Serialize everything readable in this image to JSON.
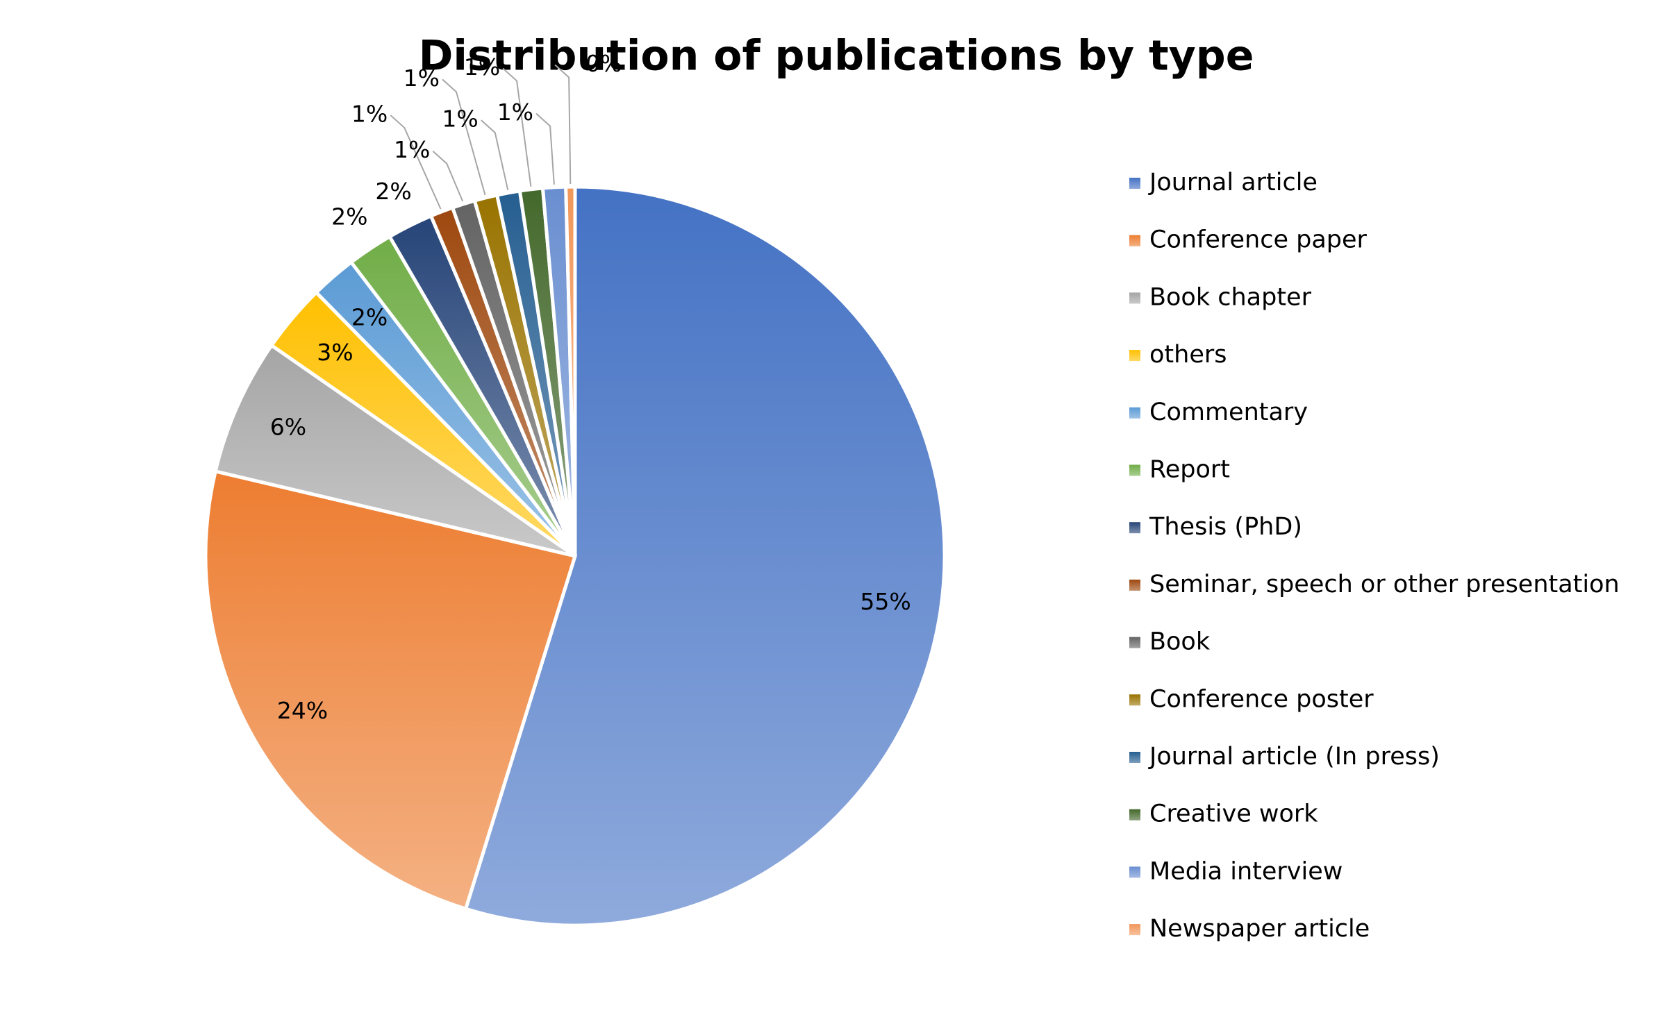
{
  "chart_data": {
    "type": "pie",
    "title": "Distribution of publications by type",
    "categories": [
      "Journal article",
      "Conference paper",
      "Book chapter",
      "others",
      "Commentary",
      "Report",
      "Thesis (PhD)",
      "Seminar, speech or other presentation",
      "Book",
      "Conference poster",
      "Journal article (In press)",
      "Creative work",
      "Media interview",
      "Newspaper article"
    ],
    "values": [
      55,
      24,
      6,
      3,
      2,
      2,
      2,
      1,
      1,
      1,
      1,
      1,
      1,
      0.4
    ],
    "value_labels": [
      "55%",
      "24%",
      "6%",
      "3%",
      "2%",
      "2%",
      "2%",
      "1%",
      "1%",
      "1%",
      "1%",
      "1%",
      "1%",
      "0%"
    ],
    "colors": [
      "#4472c4",
      "#ed7d31",
      "#a5a5a5",
      "#ffc000",
      "#5b9bd5",
      "#70ad47",
      "#264478",
      "#9e480e",
      "#636363",
      "#997300",
      "#255e91",
      "#43682b",
      "#698ed0",
      "#f1975a"
    ],
    "legend": "right"
  }
}
